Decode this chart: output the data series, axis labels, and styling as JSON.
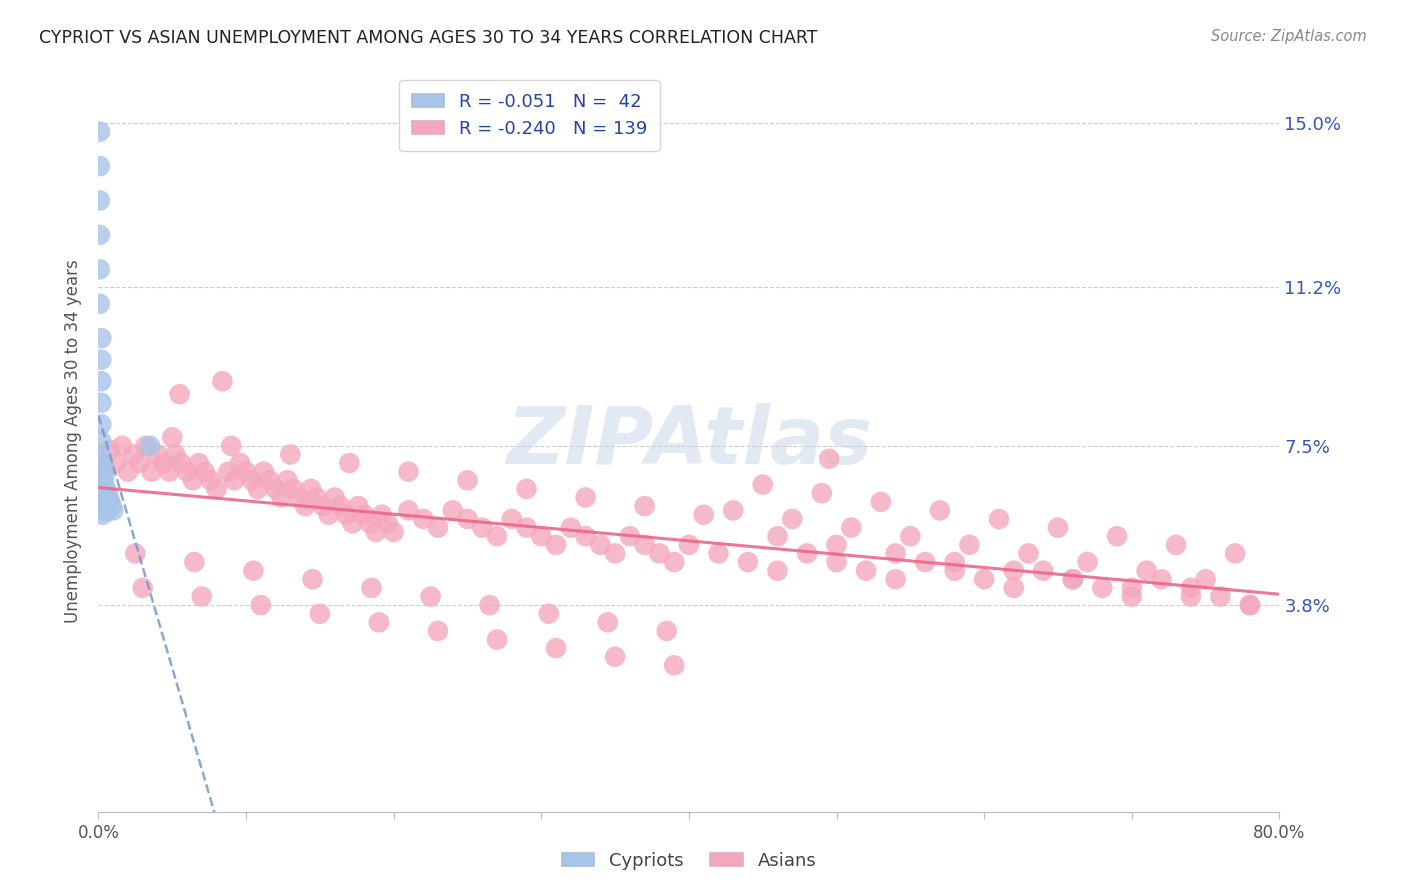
{
  "title": "CYPRIOT VS ASIAN UNEMPLOYMENT AMONG AGES 30 TO 34 YEARS CORRELATION CHART",
  "source": "Source: ZipAtlas.com",
  "ylabel": "Unemployment Among Ages 30 to 34 years",
  "xmin": 0.0,
  "xmax": 0.8,
  "ymin": -0.01,
  "ymax": 0.162,
  "yticks": [
    0.038,
    0.075,
    0.112,
    0.15
  ],
  "ytick_labels": [
    "3.8%",
    "7.5%",
    "11.2%",
    "15.0%"
  ],
  "xtick_positions": [
    0.0,
    0.1,
    0.2,
    0.3,
    0.4,
    0.5,
    0.6,
    0.7,
    0.8
  ],
  "xtick_labels": [
    "0.0%",
    "",
    "",
    "",
    "",
    "",
    "",
    "",
    "80.0%"
  ],
  "legend_R1": "-0.051",
  "legend_N1": "42",
  "legend_R2": "-0.240",
  "legend_N2": "139",
  "cypriot_color": "#a8c4e8",
  "asian_color": "#f4a8bc",
  "cypriot_line_color": "#7799cc",
  "asian_line_color": "#ee6688",
  "watermark": "ZIPAtlas",
  "bg_color": "#ffffff",
  "grid_color": "#c8c8c8",
  "title_color": "#222222",
  "source_color": "#888888",
  "tick_label_color_y": "#3355bb",
  "tick_label_color_x": "#555555",
  "ylabel_color": "#555555",
  "legend_text_color": "#2244aa",
  "cypriot_x": [
    0.001,
    0.001,
    0.001,
    0.001,
    0.001,
    0.001,
    0.002,
    0.002,
    0.002,
    0.002,
    0.002,
    0.002,
    0.002,
    0.002,
    0.002,
    0.002,
    0.002,
    0.002,
    0.003,
    0.003,
    0.003,
    0.003,
    0.003,
    0.003,
    0.003,
    0.004,
    0.004,
    0.004,
    0.004,
    0.004,
    0.005,
    0.005,
    0.005,
    0.006,
    0.006,
    0.006,
    0.007,
    0.007,
    0.008,
    0.009,
    0.035,
    0.01
  ],
  "cypriot_y": [
    0.148,
    0.14,
    0.132,
    0.124,
    0.116,
    0.108,
    0.1,
    0.095,
    0.09,
    0.085,
    0.08,
    0.076,
    0.073,
    0.071,
    0.069,
    0.067,
    0.065,
    0.063,
    0.071,
    0.069,
    0.067,
    0.065,
    0.063,
    0.061,
    0.059,
    0.068,
    0.066,
    0.064,
    0.062,
    0.06,
    0.065,
    0.063,
    0.061,
    0.064,
    0.062,
    0.06,
    0.063,
    0.061,
    0.062,
    0.061,
    0.075,
    0.06
  ],
  "asian_x": [
    0.004,
    0.008,
    0.012,
    0.016,
    0.02,
    0.024,
    0.028,
    0.032,
    0.036,
    0.04,
    0.044,
    0.048,
    0.052,
    0.056,
    0.06,
    0.064,
    0.068,
    0.072,
    0.076,
    0.08,
    0.084,
    0.088,
    0.092,
    0.096,
    0.1,
    0.104,
    0.108,
    0.112,
    0.116,
    0.12,
    0.124,
    0.128,
    0.132,
    0.136,
    0.14,
    0.144,
    0.148,
    0.152,
    0.156,
    0.16,
    0.164,
    0.168,
    0.172,
    0.176,
    0.18,
    0.184,
    0.188,
    0.192,
    0.196,
    0.2,
    0.21,
    0.22,
    0.23,
    0.24,
    0.25,
    0.26,
    0.27,
    0.28,
    0.29,
    0.3,
    0.31,
    0.32,
    0.33,
    0.34,
    0.35,
    0.36,
    0.37,
    0.38,
    0.39,
    0.4,
    0.42,
    0.44,
    0.46,
    0.48,
    0.5,
    0.52,
    0.54,
    0.56,
    0.58,
    0.6,
    0.62,
    0.64,
    0.66,
    0.68,
    0.7,
    0.72,
    0.74,
    0.76,
    0.78,
    0.05,
    0.09,
    0.13,
    0.17,
    0.21,
    0.25,
    0.29,
    0.33,
    0.37,
    0.41,
    0.03,
    0.07,
    0.11,
    0.15,
    0.19,
    0.23,
    0.27,
    0.31,
    0.35,
    0.39,
    0.025,
    0.065,
    0.105,
    0.145,
    0.185,
    0.225,
    0.265,
    0.305,
    0.345,
    0.385,
    0.43,
    0.47,
    0.51,
    0.55,
    0.59,
    0.63,
    0.67,
    0.71,
    0.75,
    0.45,
    0.49,
    0.53,
    0.57,
    0.61,
    0.65,
    0.69,
    0.73,
    0.77,
    0.46,
    0.5,
    0.54,
    0.58,
    0.62,
    0.66,
    0.7,
    0.74,
    0.78,
    0.055,
    0.495
  ],
  "asian_y": [
    0.07,
    0.074,
    0.071,
    0.075,
    0.069,
    0.073,
    0.071,
    0.075,
    0.069,
    0.073,
    0.071,
    0.069,
    0.073,
    0.071,
    0.069,
    0.067,
    0.071,
    0.069,
    0.067,
    0.065,
    0.09,
    0.069,
    0.067,
    0.071,
    0.069,
    0.067,
    0.065,
    0.069,
    0.067,
    0.065,
    0.063,
    0.067,
    0.065,
    0.063,
    0.061,
    0.065,
    0.063,
    0.061,
    0.059,
    0.063,
    0.061,
    0.059,
    0.057,
    0.061,
    0.059,
    0.057,
    0.055,
    0.059,
    0.057,
    0.055,
    0.06,
    0.058,
    0.056,
    0.06,
    0.058,
    0.056,
    0.054,
    0.058,
    0.056,
    0.054,
    0.052,
    0.056,
    0.054,
    0.052,
    0.05,
    0.054,
    0.052,
    0.05,
    0.048,
    0.052,
    0.05,
    0.048,
    0.046,
    0.05,
    0.048,
    0.046,
    0.044,
    0.048,
    0.046,
    0.044,
    0.042,
    0.046,
    0.044,
    0.042,
    0.04,
    0.044,
    0.042,
    0.04,
    0.038,
    0.077,
    0.075,
    0.073,
    0.071,
    0.069,
    0.067,
    0.065,
    0.063,
    0.061,
    0.059,
    0.042,
    0.04,
    0.038,
    0.036,
    0.034,
    0.032,
    0.03,
    0.028,
    0.026,
    0.024,
    0.05,
    0.048,
    0.046,
    0.044,
    0.042,
    0.04,
    0.038,
    0.036,
    0.034,
    0.032,
    0.06,
    0.058,
    0.056,
    0.054,
    0.052,
    0.05,
    0.048,
    0.046,
    0.044,
    0.066,
    0.064,
    0.062,
    0.06,
    0.058,
    0.056,
    0.054,
    0.052,
    0.05,
    0.054,
    0.052,
    0.05,
    0.048,
    0.046,
    0.044,
    0.042,
    0.04,
    0.038,
    0.087,
    0.072
  ]
}
